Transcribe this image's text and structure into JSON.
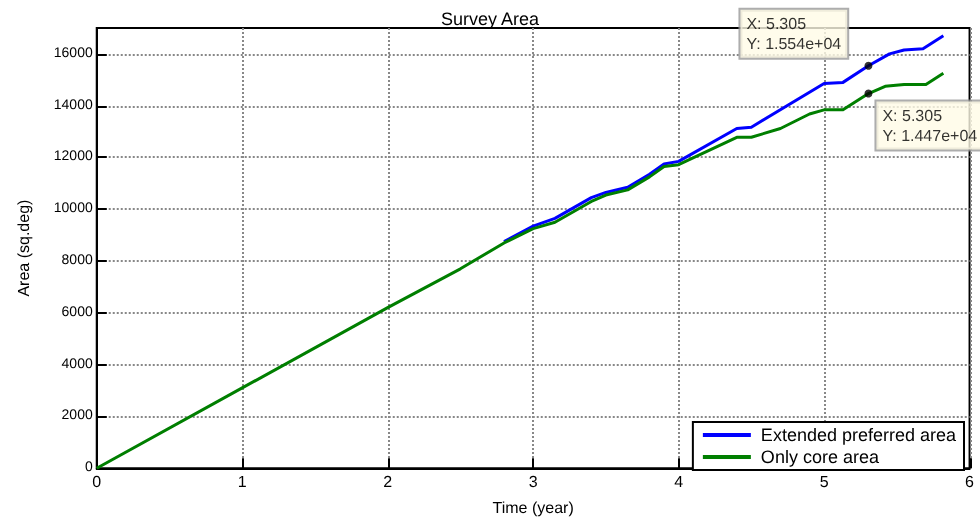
{
  "chart_data": {
    "type": "line",
    "title": "Survey Area",
    "xlabel": "Time (year)",
    "ylabel": "Area (sq.deg)",
    "xlim": [
      0,
      6
    ],
    "xticks": [
      0,
      1,
      2,
      3,
      4,
      5,
      6
    ],
    "ylim": [
      0,
      17000
    ],
    "yticks": [
      0,
      2000,
      4000,
      6000,
      8000,
      10000,
      12000,
      14000,
      16000
    ],
    "grid": true,
    "legend": "bottom right",
    "marker": "none",
    "line_style": "solid",
    "series": [
      {
        "name": "Extended preferred area",
        "color": "#0000ff",
        "x": [
          2.8,
          3,
          3.15,
          3.4,
          3.5,
          3.65,
          3.8,
          3.9,
          4,
          4.4,
          4.5,
          5,
          5.13,
          5.305,
          5.45,
          5.55,
          5.68,
          5.82
        ],
        "values": [
          8750,
          9350,
          9650,
          10450,
          10650,
          10850,
          11350,
          11750,
          11850,
          13120,
          13170,
          14860,
          14900,
          15540,
          16000,
          16150,
          16200,
          16700
        ]
      },
      {
        "name": "Only core area",
        "color": "#007f00",
        "x": [
          0,
          1,
          2,
          2.5,
          2.8,
          3,
          3.15,
          3.4,
          3.5,
          3.65,
          3.8,
          3.9,
          4,
          4.4,
          4.5,
          4.7,
          4.9,
          5,
          5.13,
          5.305,
          5.42,
          5.55,
          5.7,
          5.82
        ],
        "values": [
          0,
          3100,
          6200,
          7700,
          8700,
          9250,
          9500,
          10300,
          10550,
          10750,
          11250,
          11650,
          11720,
          12780,
          12780,
          13120,
          13680,
          13840,
          13840,
          14470,
          14750,
          14820,
          14820,
          15250
        ]
      }
    ],
    "annotations": [
      {
        "text": "X: 5.305\nY: 1.554e+04",
        "x": 5.305,
        "y": 15540
      },
      {
        "text": "X: 5.305\nY: 1.447e+04",
        "x": 5.305,
        "y": 14470
      }
    ]
  }
}
